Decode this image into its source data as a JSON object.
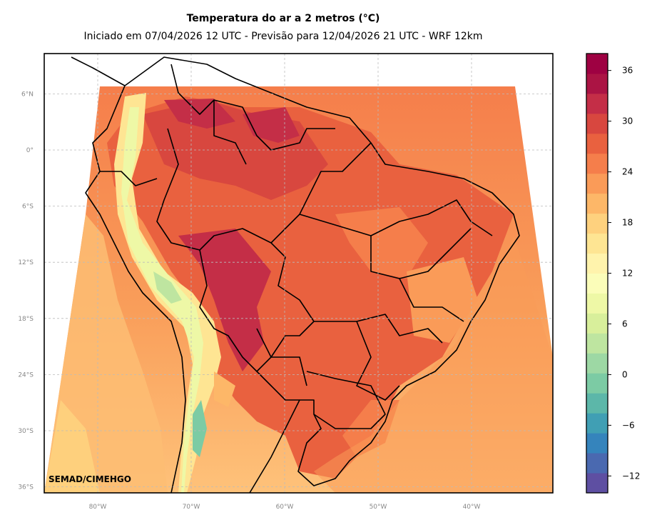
{
  "title": "Temperatura do ar a 2 metros (°C)",
  "subtitle": "Iniciado em 07/04/2026 12 UTC - Previsão para 12/04/2026 21 UTC - WRF 12km",
  "credit": "SEMAD/CIMEHGO",
  "map": {
    "lon_range": [
      -86,
      -31.5
    ],
    "lat_range": [
      -37.5,
      10
    ],
    "lon_ticks": [
      {
        "value": -80,
        "label": "80°W"
      },
      {
        "value": -70,
        "label": "70°W"
      },
      {
        "value": -60,
        "label": "60°W"
      },
      {
        "value": -50,
        "label": "50°W"
      },
      {
        "value": -40,
        "label": "40°W"
      }
    ],
    "lat_ticks": [
      {
        "value": 6,
        "label": "6°N"
      },
      {
        "value": 0,
        "label": "0°"
      },
      {
        "value": -6,
        "label": "6°S"
      },
      {
        "value": -12,
        "label": "12°S"
      },
      {
        "value": -18,
        "label": "18°S"
      },
      {
        "value": -24,
        "label": "24°S"
      },
      {
        "value": -30,
        "label": "30°S"
      },
      {
        "value": -36,
        "label": "36°S"
      }
    ],
    "grid": true
  },
  "colorbar": {
    "min": -14,
    "max": 38,
    "ticks": [
      "36",
      "30",
      "24",
      "18",
      "12",
      "6",
      "0",
      "−6",
      "−12"
    ],
    "tick_values": [
      36,
      30,
      24,
      18,
      12,
      6,
      0,
      -6,
      -12
    ],
    "colors": [
      "#5e4fa2",
      "#4a69b0",
      "#3584bc",
      "#409fb4",
      "#5cb7a9",
      "#7ccba4",
      "#9dd8a4",
      "#bee5a0",
      "#d8ef9b",
      "#eef8a6",
      "#fbfdb9",
      "#fff3ac",
      "#fee593",
      "#fed17e",
      "#fdb768",
      "#fa9b58",
      "#f57e4b",
      "#e9613f",
      "#d8473f",
      "#c42e47",
      "#ab1444",
      "#9e0142"
    ]
  }
}
